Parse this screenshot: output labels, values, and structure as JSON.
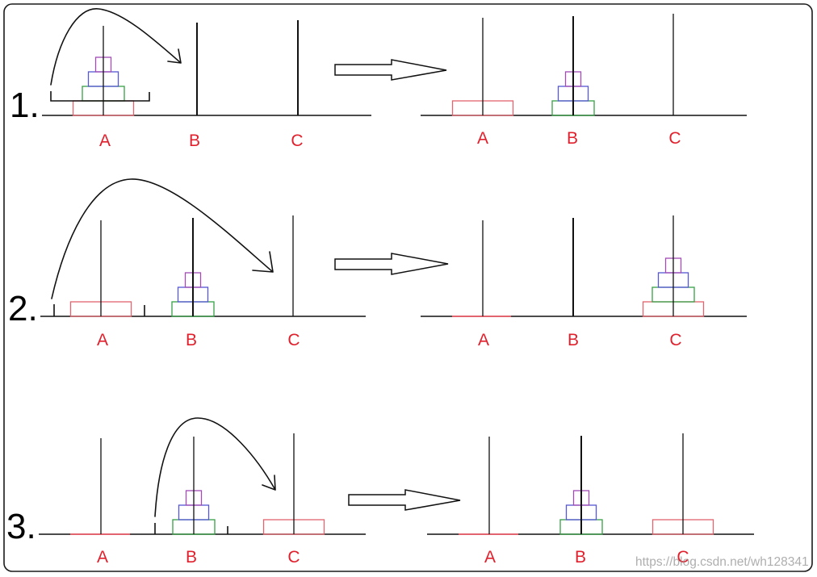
{
  "colors": {
    "line": "#111111",
    "label": "#e0202c",
    "watermark": "#8c8c8c"
  },
  "disk_colors": {
    "1": "#a24cb4",
    "2": "#5656d6",
    "3": "#35a046",
    "4": "#e2646e"
  },
  "steps": [
    {
      "label": "1.",
      "before": {
        "pegs": [
          {
            "label": "A",
            "disks": [
              4,
              3,
              2,
              1
            ]
          },
          {
            "label": "B",
            "disks": []
          },
          {
            "label": "C",
            "disks": []
          }
        ]
      },
      "after": {
        "pegs": [
          {
            "label": "A",
            "disks": [
              4
            ]
          },
          {
            "label": "B",
            "disks": [
              3,
              2,
              1
            ]
          },
          {
            "label": "C",
            "disks": []
          }
        ]
      }
    },
    {
      "label": "2.",
      "before": {
        "pegs": [
          {
            "label": "A",
            "disks": [
              4
            ]
          },
          {
            "label": "B",
            "disks": [
              3,
              2,
              1
            ]
          },
          {
            "label": "C",
            "disks": []
          }
        ]
      },
      "after": {
        "pegs": [
          {
            "label": "A",
            "disks": []
          },
          {
            "label": "B",
            "disks": []
          },
          {
            "label": "C",
            "disks": [
              4,
              3,
              2,
              1
            ]
          }
        ]
      }
    },
    {
      "label": "3.",
      "before": {
        "pegs": [
          {
            "label": "A",
            "disks": []
          },
          {
            "label": "B",
            "disks": [
              3,
              2,
              1
            ]
          },
          {
            "label": "C",
            "disks": [
              4
            ]
          }
        ]
      },
      "after": {
        "pegs": [
          {
            "label": "A",
            "disks": []
          },
          {
            "label": "B",
            "disks": [
              3,
              2,
              1
            ]
          },
          {
            "label": "C",
            "disks": [
              4
            ]
          }
        ]
      }
    }
  ],
  "watermark": "https://blog.csdn.net/wh128341"
}
